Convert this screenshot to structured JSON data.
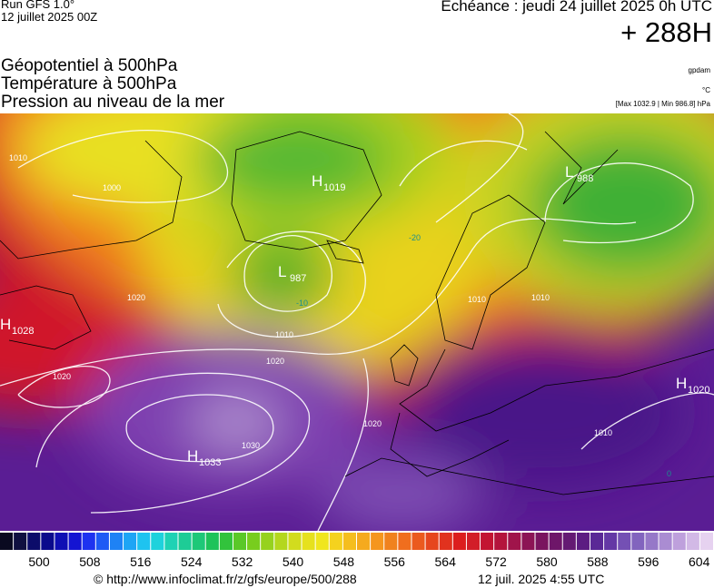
{
  "header": {
    "run": "Run GFS 1.0°",
    "date": "12 juillet 2025 00Z",
    "echeance": "Echéance : jeudi 24 juillet 2025 0h UTC",
    "lead": "+ 288H"
  },
  "fields": [
    "Géopotentiel à 500hPa",
    "Température à 500hPa",
    "Pression au niveau de la mer"
  ],
  "units": [
    "gpdam",
    "°C",
    "[Max 1032.9 | Min 986.8] hPa"
  ],
  "pressure_centers": [
    {
      "letter": "H",
      "value": 1028
    },
    {
      "letter": "L",
      "value": 987
    },
    {
      "letter": "H",
      "value": 1019
    },
    {
      "letter": "L",
      "value": 988
    },
    {
      "letter": "H",
      "value": 1033
    },
    {
      "letter": "H",
      "value": 1020
    }
  ],
  "isobar_labels": [
    1000,
    1010,
    1010,
    1020,
    1020,
    1020,
    1030,
    1020,
    1010,
    1010,
    1010
  ],
  "temperature_labels": [
    -20,
    -10,
    0
  ],
  "colorbar": {
    "labels": [
      500,
      508,
      516,
      524,
      532,
      540,
      548,
      556,
      564,
      572,
      580,
      588,
      596,
      604
    ]
  },
  "footer": {
    "url": "© http://www.infoclimat.fr/z/gfs/europe/500/288",
    "timestamp": "12 juil. 2025  4:55 UTC"
  }
}
